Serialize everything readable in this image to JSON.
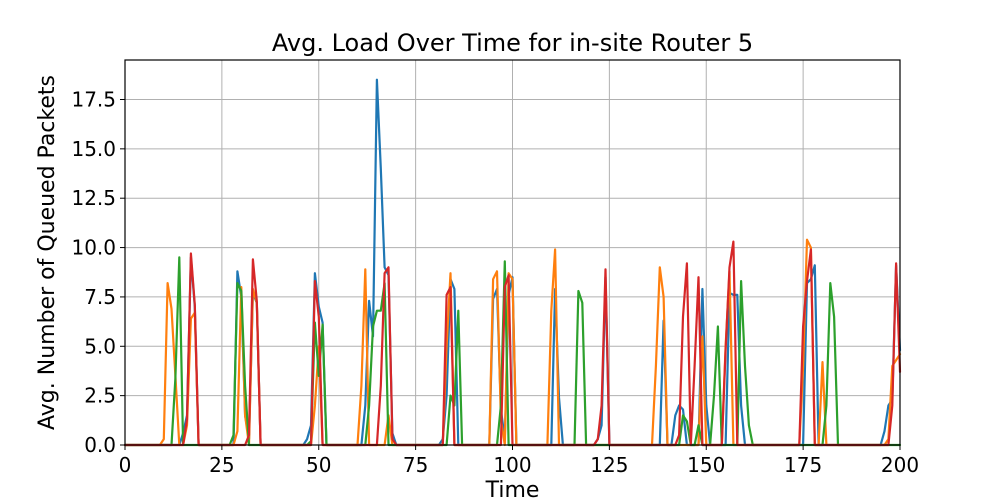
{
  "chart_data": {
    "type": "line",
    "title": "Avg. Load Over Time for in-site Router 5",
    "xlabel": "Time",
    "ylabel": "Avg. Number of Queued Packets",
    "xlim": [
      0,
      200
    ],
    "ylim": [
      0,
      19.5
    ],
    "x_ticks": [
      0,
      25,
      50,
      75,
      100,
      125,
      150,
      175,
      200
    ],
    "x_tick_labels": [
      "0",
      "25",
      "50",
      "75",
      "100",
      "125",
      "150",
      "175",
      "200"
    ],
    "y_ticks": [
      0,
      2.5,
      5,
      7.5,
      10,
      12.5,
      15,
      17.5
    ],
    "y_tick_labels": [
      "0.0",
      "2.5",
      "5.0",
      "7.5",
      "10.0",
      "12.5",
      "15.0",
      "17.5"
    ],
    "grid": true,
    "legend": "none",
    "series": [
      {
        "color": "#1f77b4",
        "points": [
          [
            0,
            0
          ],
          [
            14,
            0
          ],
          [
            15,
            0.6
          ],
          [
            16,
            1.5
          ],
          [
            17,
            9.5
          ],
          [
            18,
            7.0
          ],
          [
            19,
            0
          ],
          [
            28,
            0
          ],
          [
            29,
            8.8
          ],
          [
            30,
            7.5
          ],
          [
            31,
            1.5
          ],
          [
            32,
            0.3
          ],
          [
            33,
            7.7
          ],
          [
            34,
            7.2
          ],
          [
            35,
            0
          ],
          [
            46,
            0
          ],
          [
            47,
            0.3
          ],
          [
            48,
            1.0
          ],
          [
            49,
            8.7
          ],
          [
            50,
            7.0
          ],
          [
            51,
            6.2
          ],
          [
            52,
            0
          ],
          [
            61,
            0
          ],
          [
            62,
            2.0
          ],
          [
            63,
            7.3
          ],
          [
            64,
            5.5
          ],
          [
            65,
            18.5
          ],
          [
            66,
            14.0
          ],
          [
            67,
            9.0
          ],
          [
            68,
            8.6
          ],
          [
            69,
            0.6
          ],
          [
            70,
            0
          ],
          [
            81,
            0
          ],
          [
            82,
            0.3
          ],
          [
            83,
            2.5
          ],
          [
            84,
            8.4
          ],
          [
            85,
            7.9
          ],
          [
            86,
            0
          ],
          [
            94,
            0
          ],
          [
            95,
            7.4
          ],
          [
            96,
            7.9
          ],
          [
            97,
            1.8
          ],
          [
            98,
            0.3
          ],
          [
            99,
            7.6
          ],
          [
            100,
            8.5
          ],
          [
            101,
            0
          ],
          [
            110,
            0
          ],
          [
            111,
            7.9
          ],
          [
            112,
            2.4
          ],
          [
            113,
            0
          ],
          [
            121,
            0
          ],
          [
            122,
            0.3
          ],
          [
            123,
            1.0
          ],
          [
            124,
            8.5
          ],
          [
            125,
            0
          ],
          [
            138,
            0
          ],
          [
            139,
            6.3
          ],
          [
            140,
            0
          ],
          [
            141,
            0
          ],
          [
            142,
            1.5
          ],
          [
            143,
            2.0
          ],
          [
            144,
            1.8
          ],
          [
            145,
            0
          ],
          [
            148,
            0
          ],
          [
            149,
            7.9
          ],
          [
            150,
            2.0
          ],
          [
            151,
            0
          ],
          [
            155,
            0
          ],
          [
            156,
            7.7
          ],
          [
            157,
            7.6
          ],
          [
            158,
            7.6
          ],
          [
            159,
            2.0
          ],
          [
            160,
            0
          ],
          [
            175,
            0
          ],
          [
            176,
            8.2
          ],
          [
            177,
            8.4
          ],
          [
            178,
            9.1
          ],
          [
            179,
            0
          ],
          [
            195,
            0
          ],
          [
            196,
            0.7
          ],
          [
            197,
            2.0
          ],
          [
            198,
            2.3
          ],
          [
            199,
            9.1
          ],
          [
            200,
            4.8
          ]
        ]
      },
      {
        "color": "#ff7f0e",
        "points": [
          [
            0,
            0
          ],
          [
            9,
            0
          ],
          [
            10,
            0.3
          ],
          [
            11,
            8.2
          ],
          [
            12,
            6.9
          ],
          [
            13,
            3.5
          ],
          [
            14,
            0
          ],
          [
            15,
            0
          ],
          [
            16,
            1.0
          ],
          [
            17,
            6.4
          ],
          [
            18,
            6.7
          ],
          [
            19,
            0
          ],
          [
            28,
            0
          ],
          [
            29,
            0.7
          ],
          [
            30,
            8.0
          ],
          [
            31,
            1.5
          ],
          [
            32,
            0
          ],
          [
            33,
            7.9
          ],
          [
            34,
            7.2
          ],
          [
            35,
            0
          ],
          [
            48,
            0
          ],
          [
            49,
            2.0
          ],
          [
            50,
            5.0
          ],
          [
            51,
            0
          ],
          [
            60,
            0
          ],
          [
            61,
            3.0
          ],
          [
            62,
            8.9
          ],
          [
            63,
            0
          ],
          [
            67,
            0
          ],
          [
            68,
            1.5
          ],
          [
            69,
            0
          ],
          [
            82,
            0
          ],
          [
            83,
            5.0
          ],
          [
            84,
            8.7
          ],
          [
            85,
            0
          ],
          [
            94,
            0
          ],
          [
            95,
            8.4
          ],
          [
            96,
            8.8
          ],
          [
            97,
            1.3
          ],
          [
            98,
            0
          ],
          [
            99,
            8.7
          ],
          [
            100,
            8.4
          ],
          [
            101,
            0
          ],
          [
            109,
            0
          ],
          [
            110,
            6.8
          ],
          [
            111,
            9.9
          ],
          [
            112,
            0
          ],
          [
            136,
            0
          ],
          [
            137,
            4.0
          ],
          [
            138,
            9.0
          ],
          [
            139,
            7.5
          ],
          [
            140,
            0
          ],
          [
            148,
            0
          ],
          [
            149,
            5.5
          ],
          [
            150,
            0
          ],
          [
            154,
            0
          ],
          [
            155,
            5.0
          ],
          [
            156,
            8.8
          ],
          [
            157,
            0
          ],
          [
            174,
            0
          ],
          [
            175,
            4.0
          ],
          [
            176,
            10.4
          ],
          [
            177,
            10.0
          ],
          [
            178,
            0
          ],
          [
            179,
            0
          ],
          [
            180,
            4.2
          ],
          [
            181,
            0
          ],
          [
            194,
            0
          ],
          [
            196,
            0
          ],
          [
            197,
            0.3
          ],
          [
            198,
            4.0
          ],
          [
            199,
            4.3
          ],
          [
            200,
            4.6
          ]
        ]
      },
      {
        "color": "#2ca02c",
        "points": [
          [
            0,
            0
          ],
          [
            12,
            0
          ],
          [
            13,
            3.4
          ],
          [
            14,
            9.5
          ],
          [
            15,
            0
          ],
          [
            27,
            0
          ],
          [
            28,
            0.5
          ],
          [
            29,
            8.2
          ],
          [
            30,
            7.8
          ],
          [
            31,
            3.0
          ],
          [
            32,
            0
          ],
          [
            47,
            0
          ],
          [
            48,
            0.2
          ],
          [
            49,
            6.2
          ],
          [
            50,
            3.5
          ],
          [
            51,
            6.1
          ],
          [
            52,
            0
          ],
          [
            62,
            0
          ],
          [
            63,
            2.0
          ],
          [
            64,
            6.0
          ],
          [
            65,
            6.8
          ],
          [
            66,
            6.8
          ],
          [
            67,
            8.2
          ],
          [
            68,
            0
          ],
          [
            83,
            0
          ],
          [
            84,
            2.5
          ],
          [
            85,
            2.0
          ],
          [
            86,
            6.8
          ],
          [
            87,
            0
          ],
          [
            96,
            0
          ],
          [
            97,
            2.0
          ],
          [
            98,
            9.3
          ],
          [
            99,
            0
          ],
          [
            116,
            0
          ],
          [
            117,
            7.8
          ],
          [
            118,
            7.2
          ],
          [
            119,
            0
          ],
          [
            143,
            0
          ],
          [
            144,
            1.5
          ],
          [
            145,
            1.2
          ],
          [
            146,
            0
          ],
          [
            147,
            0
          ],
          [
            148,
            1.0
          ],
          [
            149,
            0
          ],
          [
            151,
            0
          ],
          [
            152,
            2.5
          ],
          [
            153,
            6.0
          ],
          [
            154,
            0
          ],
          [
            158,
            0
          ],
          [
            159,
            8.3
          ],
          [
            160,
            4.0
          ],
          [
            161,
            1.0
          ],
          [
            162,
            0
          ],
          [
            180,
            0
          ],
          [
            181,
            2.0
          ],
          [
            182,
            8.2
          ],
          [
            183,
            6.5
          ],
          [
            184,
            0
          ],
          [
            200,
            0
          ]
        ]
      },
      {
        "color": "#d62728",
        "points": [
          [
            0,
            0
          ],
          [
            15,
            0
          ],
          [
            16,
            1.3
          ],
          [
            17,
            9.7
          ],
          [
            18,
            7.1
          ],
          [
            19,
            0
          ],
          [
            31,
            0
          ],
          [
            32,
            0.5
          ],
          [
            33,
            9.4
          ],
          [
            34,
            7.3
          ],
          [
            35,
            0
          ],
          [
            48,
            0
          ],
          [
            49,
            8.3
          ],
          [
            50,
            6.5
          ],
          [
            51,
            0
          ],
          [
            65,
            0
          ],
          [
            66,
            3.0
          ],
          [
            67,
            8.7
          ],
          [
            68,
            9.0
          ],
          [
            69,
            0.3
          ],
          [
            70,
            0
          ],
          [
            82,
            0
          ],
          [
            83,
            7.6
          ],
          [
            84,
            8.0
          ],
          [
            85,
            0
          ],
          [
            97,
            0
          ],
          [
            98,
            8.0
          ],
          [
            99,
            8.6
          ],
          [
            100,
            0
          ],
          [
            121,
            0
          ],
          [
            122,
            0.3
          ],
          [
            123,
            2.0
          ],
          [
            124,
            8.9
          ],
          [
            125,
            0
          ],
          [
            142,
            0
          ],
          [
            143,
            0.5
          ],
          [
            144,
            6.5
          ],
          [
            145,
            9.2
          ],
          [
            146,
            0
          ],
          [
            147,
            4.0
          ],
          [
            148,
            8.5
          ],
          [
            149,
            0
          ],
          [
            154,
            0
          ],
          [
            155,
            4.8
          ],
          [
            156,
            9.0
          ],
          [
            157,
            10.3
          ],
          [
            158,
            0
          ],
          [
            174,
            0
          ],
          [
            175,
            6.0
          ],
          [
            176,
            8.3
          ],
          [
            177,
            9.9
          ],
          [
            178,
            0
          ],
          [
            197,
            0
          ],
          [
            198,
            2.0
          ],
          [
            199,
            9.2
          ],
          [
            200,
            3.7
          ]
        ]
      }
    ]
  }
}
